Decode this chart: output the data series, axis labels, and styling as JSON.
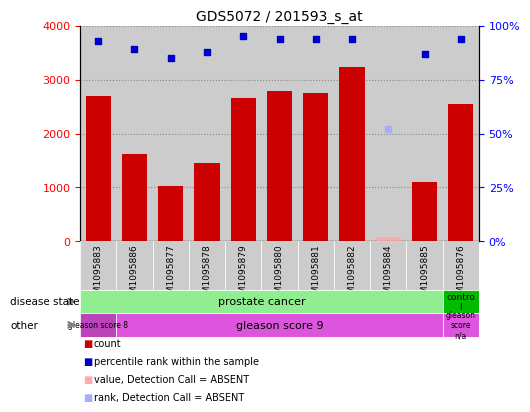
{
  "title": "GDS5072 / 201593_s_at",
  "samples": [
    "GSM1095883",
    "GSM1095886",
    "GSM1095877",
    "GSM1095878",
    "GSM1095879",
    "GSM1095880",
    "GSM1095881",
    "GSM1095882",
    "GSM1095884",
    "GSM1095885",
    "GSM1095876"
  ],
  "counts": [
    2700,
    1620,
    1020,
    1450,
    2650,
    2780,
    2750,
    3230,
    80,
    1100,
    2540
  ],
  "percentile_ranks": [
    93,
    89,
    85,
    88,
    95,
    94,
    94,
    94,
    52,
    87,
    94
  ],
  "absent_value_idx": [
    8
  ],
  "absent_rank_idx": [
    8
  ],
  "bar_color": "#cc0000",
  "dot_color": "#0000cc",
  "absent_bar_color": "#ffaaaa",
  "absent_dot_color": "#aaaaff",
  "ylim_left": [
    0,
    4000
  ],
  "ylim_right": [
    0,
    100
  ],
  "yticks_left": [
    0,
    1000,
    2000,
    3000,
    4000
  ],
  "yticks_right": [
    0,
    25,
    50,
    75,
    100
  ],
  "disease_color_main": "#90ee90",
  "disease_color_control": "#00bb00",
  "other_color_main": "#dd55dd",
  "other_color_score8": "#bb44bb",
  "col_bg_color": "#cccccc",
  "grid_color": "#888888",
  "legend_items": [
    {
      "color": "#cc0000",
      "label": "count"
    },
    {
      "color": "#0000cc",
      "label": "percentile rank within the sample"
    },
    {
      "color": "#ffaaaa",
      "label": "value, Detection Call = ABSENT"
    },
    {
      "color": "#aaaaff",
      "label": "rank, Detection Call = ABSENT"
    }
  ]
}
